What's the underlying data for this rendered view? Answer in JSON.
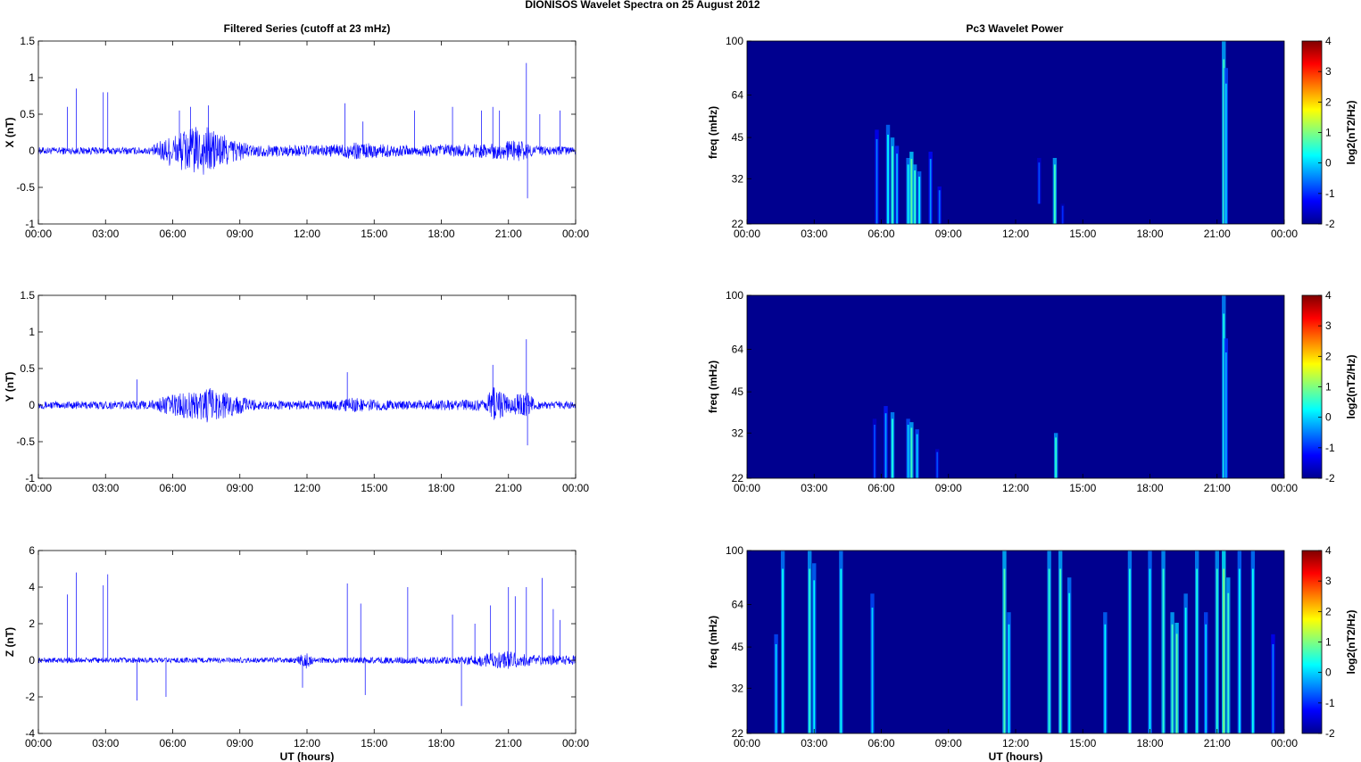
{
  "figure": {
    "title": "DIONISOS Wavelet Spectra on 25 August    2012",
    "left_title": "Filtered Series (cutoff at 23 mHz)",
    "right_title": "Pc3 Wavelet Power"
  },
  "chart_data": [
    {
      "type": "line",
      "ylabel": "X (nT)",
      "xlabel": "",
      "ylim": [
        -1,
        1.5
      ],
      "yticks": [
        "1.5",
        "1",
        "0.5",
        "0",
        "-0.5",
        "-1"
      ],
      "xticks": [
        "00:00",
        "03:00",
        "06:00",
        "09:00",
        "12:00",
        "15:00",
        "18:00",
        "21:00",
        "00:00"
      ],
      "xlim_hours": [
        0,
        24
      ],
      "noise_envelope": [
        [
          0,
          0.05
        ],
        [
          5,
          0.05
        ],
        [
          5.5,
          0.15
        ],
        [
          6.5,
          0.3
        ],
        [
          7.5,
          0.35
        ],
        [
          8.5,
          0.2
        ],
        [
          9.5,
          0.08
        ],
        [
          13,
          0.08
        ],
        [
          14,
          0.12
        ],
        [
          16,
          0.08
        ],
        [
          20,
          0.1
        ],
        [
          21.5,
          0.15
        ],
        [
          22,
          0.08
        ],
        [
          24,
          0.05
        ]
      ],
      "spikes": [
        [
          1.3,
          0.6
        ],
        [
          1.7,
          0.85
        ],
        [
          2.9,
          0.8
        ],
        [
          3.1,
          0.8
        ],
        [
          6.3,
          0.55
        ],
        [
          6.8,
          0.6
        ],
        [
          7.6,
          0.62
        ],
        [
          13.7,
          0.65
        ],
        [
          14.5,
          0.4
        ],
        [
          16.8,
          0.55
        ],
        [
          18.5,
          0.6
        ],
        [
          19.8,
          0.55
        ],
        [
          20.3,
          0.6
        ],
        [
          20.6,
          0.55
        ],
        [
          21.8,
          1.2
        ],
        [
          21.85,
          -0.65
        ],
        [
          22.4,
          0.5
        ],
        [
          23.3,
          0.55
        ]
      ],
      "series_color": "#0000ff"
    },
    {
      "type": "line",
      "ylabel": "Y (nT)",
      "xlabel": "",
      "ylim": [
        -1,
        1.5
      ],
      "yticks": [
        "1.5",
        "1",
        "0.5",
        "0",
        "-0.5",
        "-1"
      ],
      "xticks": [
        "00:00",
        "03:00",
        "06:00",
        "09:00",
        "12:00",
        "15:00",
        "18:00",
        "21:00",
        "00:00"
      ],
      "xlim_hours": [
        0,
        24
      ],
      "noise_envelope": [
        [
          0,
          0.05
        ],
        [
          5,
          0.06
        ],
        [
          6,
          0.15
        ],
        [
          7,
          0.2
        ],
        [
          7.5,
          0.25
        ],
        [
          9,
          0.12
        ],
        [
          10,
          0.06
        ],
        [
          13,
          0.06
        ],
        [
          14,
          0.1
        ],
        [
          16,
          0.06
        ],
        [
          20,
          0.08
        ],
        [
          20.3,
          0.3
        ],
        [
          21,
          0.1
        ],
        [
          21.8,
          0.2
        ],
        [
          22.2,
          0.06
        ],
        [
          24,
          0.05
        ]
      ],
      "spikes": [
        [
          4.4,
          0.35
        ],
        [
          13.8,
          0.45
        ],
        [
          20.3,
          0.55
        ],
        [
          21.8,
          0.9
        ],
        [
          21.85,
          -0.55
        ]
      ],
      "series_color": "#0000ff"
    },
    {
      "type": "line",
      "ylabel": "Z (nT)",
      "xlabel": "UT (hours)",
      "ylim": [
        -4,
        6
      ],
      "yticks": [
        "6",
        "4",
        "2",
        "0",
        "-2",
        "-4"
      ],
      "xticks": [
        "00:00",
        "03:00",
        "06:00",
        "09:00",
        "12:00",
        "15:00",
        "18:00",
        "21:00",
        "00:00"
      ],
      "xlim_hours": [
        0,
        24
      ],
      "noise_envelope": [
        [
          0,
          0.15
        ],
        [
          11.5,
          0.15
        ],
        [
          12,
          0.5
        ],
        [
          12.3,
          0.15
        ],
        [
          19,
          0.2
        ],
        [
          20,
          0.4
        ],
        [
          21,
          0.5
        ],
        [
          22,
          0.3
        ],
        [
          24,
          0.25
        ]
      ],
      "spikes": [
        [
          1.3,
          3.6
        ],
        [
          1.7,
          4.8
        ],
        [
          2.9,
          4.1
        ],
        [
          3.1,
          4.7
        ],
        [
          4.4,
          -2.2
        ],
        [
          5.7,
          -2.0
        ],
        [
          11.8,
          -1.5
        ],
        [
          13.8,
          4.2
        ],
        [
          14.4,
          3.1
        ],
        [
          14.6,
          -1.9
        ],
        [
          16.5,
          4.0
        ],
        [
          18.5,
          2.5
        ],
        [
          18.9,
          -2.5
        ],
        [
          19.5,
          2.0
        ],
        [
          20.2,
          3.0
        ],
        [
          21,
          4.0
        ],
        [
          21.3,
          3.5
        ],
        [
          21.8,
          4.0
        ],
        [
          22.5,
          4.5
        ],
        [
          23,
          2.8
        ],
        [
          23.3,
          2.2
        ]
      ],
      "series_color": "#0000ff"
    },
    {
      "type": "heatmap",
      "ylabel": "freq (mHz)",
      "xlabel": "",
      "yscale": "log",
      "ylim": [
        22,
        100
      ],
      "yticks": [
        "100",
        "64",
        "45",
        "32",
        "22"
      ],
      "xticks": [
        "00:00",
        "03:00",
        "06:00",
        "09:00",
        "12:00",
        "15:00",
        "18:00",
        "21:00",
        "00:00"
      ],
      "xlim_hours": [
        0,
        24
      ],
      "colorbar": {
        "label": "log2(nT2/Hz)",
        "range": [
          -2,
          4
        ],
        "ticks": [
          "4",
          "3",
          "2",
          "1",
          "0",
          "-1",
          "-2"
        ]
      },
      "background_level": -2,
      "streaks": [
        [
          5.8,
          22,
          48,
          -0.5
        ],
        [
          6.3,
          22,
          50,
          0.2
        ],
        [
          6.5,
          22,
          45,
          0.5
        ],
        [
          6.7,
          22,
          42,
          -0.2
        ],
        [
          7.2,
          22,
          38,
          0.3
        ],
        [
          7.35,
          22,
          40,
          0.8
        ],
        [
          7.5,
          22,
          36,
          0.5
        ],
        [
          7.7,
          22,
          34,
          0.2
        ],
        [
          8.2,
          22,
          40,
          -0.4
        ],
        [
          8.6,
          22,
          30,
          -0.6
        ],
        [
          13.05,
          26,
          38,
          -0.8
        ],
        [
          13.75,
          22,
          38,
          0.6
        ],
        [
          14.1,
          22,
          26,
          -1.0
        ],
        [
          21.3,
          22,
          100,
          0.6
        ],
        [
          21.4,
          22,
          80,
          0.0
        ]
      ]
    },
    {
      "type": "heatmap",
      "ylabel": "freq (mHz)",
      "xlabel": "",
      "yscale": "log",
      "ylim": [
        22,
        100
      ],
      "yticks": [
        "100",
        "64",
        "45",
        "32",
        "22"
      ],
      "xticks": [
        "00:00",
        "03:00",
        "06:00",
        "09:00",
        "12:00",
        "15:00",
        "18:00",
        "21:00",
        "00:00"
      ],
      "xlim_hours": [
        0,
        24
      ],
      "colorbar": {
        "label": "log2(nT2/Hz)",
        "range": [
          -2,
          4
        ],
        "ticks": [
          "4",
          "3",
          "2",
          "1",
          "0",
          "-1",
          "-2"
        ]
      },
      "background_level": -2,
      "streaks": [
        [
          5.7,
          22,
          36,
          -0.8
        ],
        [
          6.2,
          22,
          40,
          -0.3
        ],
        [
          6.5,
          22,
          38,
          0.4
        ],
        [
          7.2,
          22,
          36,
          0.0
        ],
        [
          7.35,
          22,
          35,
          0.6
        ],
        [
          7.6,
          22,
          33,
          0.0
        ],
        [
          8.5,
          22,
          28,
          -0.8
        ],
        [
          13.8,
          22,
          32,
          0.5
        ],
        [
          21.3,
          22,
          100,
          0.4
        ],
        [
          21.4,
          22,
          70,
          -0.2
        ]
      ]
    },
    {
      "type": "heatmap",
      "ylabel": "freq (mHz)",
      "xlabel": "UT (hours)",
      "yscale": "log",
      "ylim": [
        22,
        100
      ],
      "yticks": [
        "100",
        "64",
        "45",
        "32",
        "22"
      ],
      "xticks": [
        "00:00",
        "03:00",
        "06:00",
        "09:00",
        "12:00",
        "15:00",
        "18:00",
        "21:00",
        "00:00"
      ],
      "xlim_hours": [
        0,
        24
      ],
      "colorbar": {
        "label": "log2(nT2/Hz)",
        "range": [
          -2,
          4
        ],
        "ticks": [
          "4",
          "3",
          "2",
          "1",
          "0",
          "-1",
          "-2"
        ]
      },
      "background_level": -2,
      "streaks": [
        [
          1.3,
          22,
          50,
          0.0
        ],
        [
          1.6,
          22,
          100,
          0.3
        ],
        [
          2.8,
          22,
          100,
          0.5
        ],
        [
          3.0,
          22,
          90,
          0.2
        ],
        [
          4.2,
          22,
          100,
          0.3
        ],
        [
          5.6,
          22,
          70,
          0.0
        ],
        [
          11.5,
          22,
          100,
          0.7
        ],
        [
          11.7,
          22,
          60,
          0.2
        ],
        [
          13.5,
          22,
          100,
          0.5
        ],
        [
          14.0,
          22,
          100,
          0.6
        ],
        [
          14.4,
          22,
          80,
          0.3
        ],
        [
          16.0,
          22,
          60,
          0.2
        ],
        [
          17.1,
          22,
          100,
          0.4
        ],
        [
          18.0,
          22,
          100,
          0.2
        ],
        [
          18.6,
          22,
          100,
          0.5
        ],
        [
          19.0,
          22,
          60,
          0.6
        ],
        [
          19.2,
          22,
          55,
          0.8
        ],
        [
          19.6,
          22,
          70,
          0.3
        ],
        [
          20.1,
          22,
          100,
          0.4
        ],
        [
          20.5,
          22,
          60,
          0.0
        ],
        [
          21.0,
          22,
          100,
          0.5
        ],
        [
          21.3,
          22,
          100,
          1.0
        ],
        [
          21.5,
          22,
          80,
          0.6
        ],
        [
          22.0,
          22,
          100,
          0.2
        ],
        [
          22.6,
          22,
          100,
          0.3
        ],
        [
          23.5,
          22,
          50,
          -0.5
        ]
      ]
    }
  ]
}
